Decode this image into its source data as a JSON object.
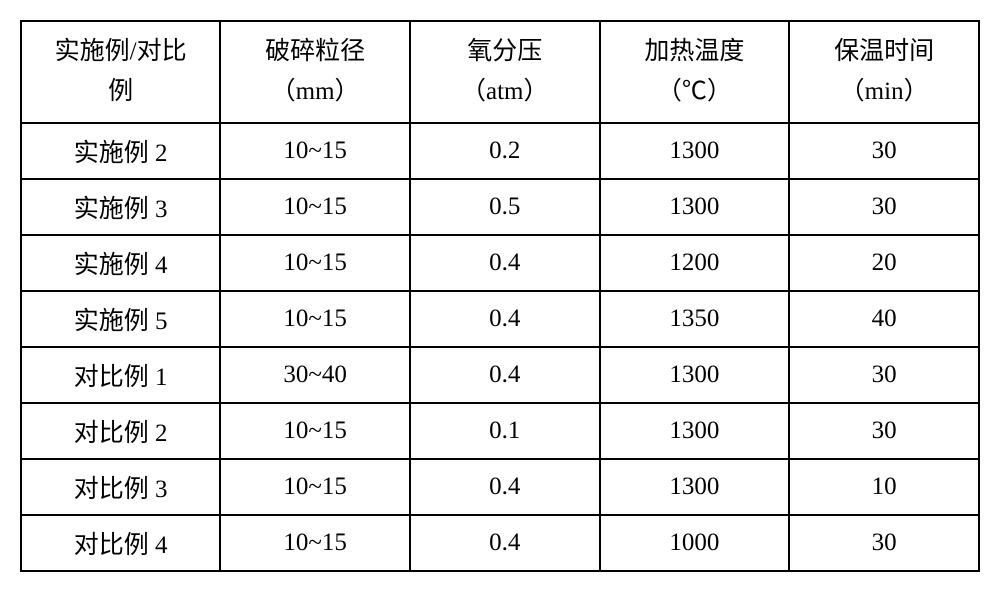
{
  "table": {
    "type": "table",
    "background_color": "#ffffff",
    "border_color": "#000000",
    "border_width": 2,
    "font_family": "SimSun",
    "header_fontsize": 25,
    "cell_fontsize": 25,
    "text_color": "#000000",
    "columns": [
      {
        "line1": "实施例/对比",
        "line2": "例",
        "width_pct": 20.8,
        "align": "center"
      },
      {
        "line1": "破碎粒径",
        "line2": "（mm）",
        "width_pct": 19.8,
        "align": "center"
      },
      {
        "line1": "氧分压",
        "line2": "（atm）",
        "width_pct": 19.8,
        "align": "center"
      },
      {
        "line1": "加热温度",
        "line2": "（℃）",
        "width_pct": 19.8,
        "align": "center"
      },
      {
        "line1": "保温时间",
        "line2": "（min）",
        "width_pct": 19.8,
        "align": "center"
      }
    ],
    "rows": [
      [
        "实施例 2",
        "10~15",
        "0.2",
        "1300",
        "30"
      ],
      [
        "实施例 3",
        "10~15",
        "0.5",
        "1300",
        "30"
      ],
      [
        "实施例 4",
        "10~15",
        "0.4",
        "1200",
        "20"
      ],
      [
        "实施例 5",
        "10~15",
        "0.4",
        "1350",
        "40"
      ],
      [
        "对比例 1",
        "30~40",
        "0.4",
        "1300",
        "30"
      ],
      [
        "对比例 2",
        "10~15",
        "0.1",
        "1300",
        "30"
      ],
      [
        "对比例 3",
        "10~15",
        "0.4",
        "1300",
        "10"
      ],
      [
        "对比例 4",
        "10~15",
        "0.4",
        "1000",
        "30"
      ]
    ],
    "header_row_height": 100,
    "data_row_height": 54
  }
}
